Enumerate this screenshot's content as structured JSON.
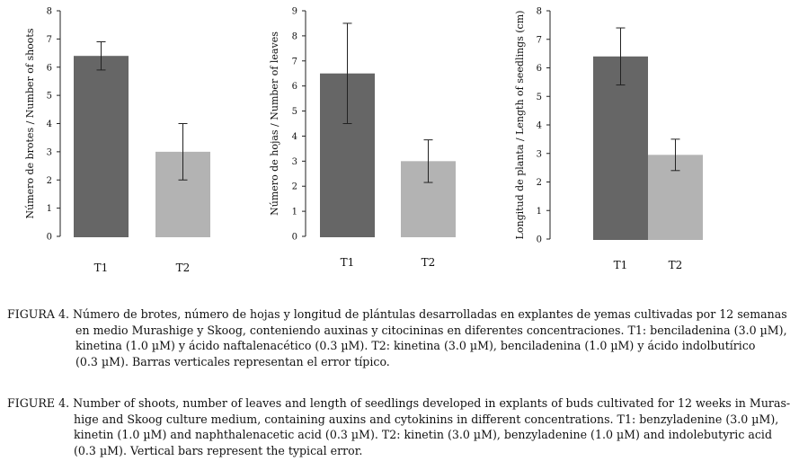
{
  "chart_data": [
    {
      "type": "bar",
      "ylabel": "Número de brotes / Number of shoots",
      "categories": [
        "T1",
        "T2"
      ],
      "values": [
        6.4,
        3.0
      ],
      "errors": [
        0.5,
        1.0
      ],
      "ylim": [
        0,
        8
      ],
      "yticks": [
        "0",
        "1",
        "2",
        "3",
        "4",
        "5",
        "6",
        "7",
        "8"
      ],
      "colors": [
        "#666666",
        "#b3b3b3"
      ],
      "grid": false
    },
    {
      "type": "bar",
      "ylabel": "Número de hojas / Number of leaves",
      "categories": [
        "T1",
        "T2"
      ],
      "values": [
        6.5,
        3.0
      ],
      "errors": [
        2.0,
        0.85
      ],
      "ylim": [
        0,
        9
      ],
      "yticks": [
        "0",
        "1",
        "2",
        "3",
        "4",
        "5",
        "6",
        "7",
        "8",
        "9"
      ],
      "colors": [
        "#666666",
        "#b3b3b3"
      ],
      "grid": false
    },
    {
      "type": "bar",
      "ylabel": "Longitud de planta / Length of seedlings (cm)",
      "categories": [
        "T1",
        "T2"
      ],
      "values": [
        6.4,
        2.95
      ],
      "errors": [
        1.0,
        0.55
      ],
      "ylim": [
        0,
        8
      ],
      "yticks": [
        "0",
        "1",
        "2",
        "3",
        "4",
        "5",
        "6",
        "7",
        "8"
      ],
      "colors": [
        "#666666",
        "#b3b3b3"
      ],
      "grid": false
    }
  ],
  "caption_es": {
    "lines": [
      "FIGURA 4. Número de brotes, número de hojas y longitud de plántulas desarrolladas en explantes de yemas cultivadas por 12 semanas",
      "en medio Murashige y Skoog, conteniendo auxinas y citocininas en diferentes concentraciones. T1: benciladenina (3.0 µM),",
      "kinetina (1.0 µM) y ácido naftalenacético (0.3 µM). T2: kinetina (3.0 µM), benciladenina (1.0 µM) y ácido indolbutírico",
      "(0.3 µM). Barras verticales representan el error típico."
    ]
  },
  "caption_en": {
    "lines": [
      "FIGURE 4. Number of shoots, number of leaves and length of seedlings developed in explants of buds cultivated for 12 weeks in Muras-",
      "hige and Skoog culture medium, containing auxins and cytokinins in different concentrations. T1: benzyladenine (3.0 µM),",
      "kinetin (1.0 µM) and naphthalenacetic acid (0.3 µM). T2: kinetin (3.0 µM), benzyladenine (1.0 µM) and indolebutyric acid",
      "(0.3 µM). Vertical bars represent the typical error."
    ]
  }
}
